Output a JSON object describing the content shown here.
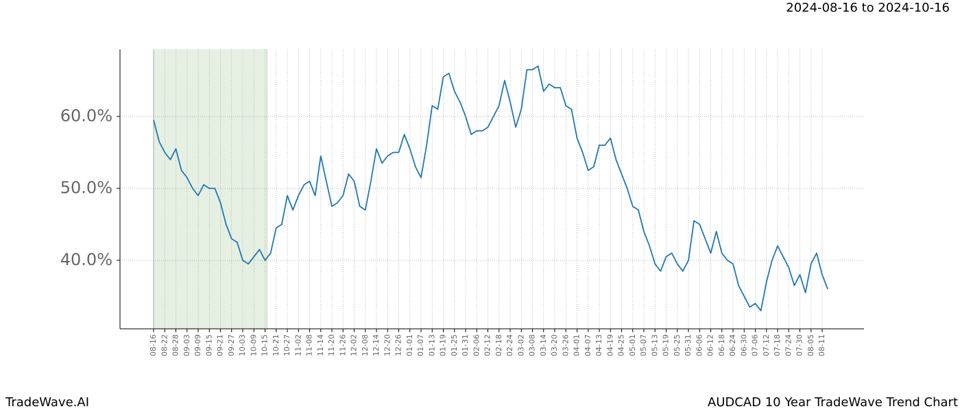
{
  "chart_data": {
    "type": "line",
    "title": "2024-08-16 to 2024-10-16",
    "footer_left": "TradeWave.AI",
    "footer_right": "AUDCAD 10 Year TradeWave Trend Chart",
    "categories": [
      "08-16",
      null,
      "08-22",
      null,
      "08-28",
      null,
      "09-03",
      null,
      "09-09",
      null,
      "09-15",
      null,
      "09-21",
      null,
      "09-27",
      null,
      "10-03",
      null,
      "10-09",
      null,
      "10-15",
      null,
      "10-21",
      null,
      "10-27",
      null,
      "11-02",
      null,
      "11-08",
      null,
      "11-14",
      null,
      "11-20",
      null,
      "11-26",
      null,
      "12-02",
      null,
      "12-08",
      null,
      "12-14",
      null,
      "12-20",
      null,
      "12-26",
      null,
      "01-01",
      null,
      "01-07",
      null,
      "01-13",
      null,
      "01-19",
      null,
      "01-25",
      null,
      "01-31",
      null,
      "02-06",
      null,
      "02-12",
      null,
      "02-18",
      null,
      "02-24",
      null,
      "03-02",
      null,
      "03-08",
      null,
      "03-14",
      null,
      "03-20",
      null,
      "03-26",
      null,
      "04-01",
      null,
      "04-07",
      null,
      "04-13",
      null,
      "04-19",
      null,
      "04-25",
      null,
      "05-01",
      null,
      "05-07",
      null,
      "05-13",
      null,
      "05-19",
      null,
      "05-25",
      null,
      "05-31",
      null,
      "06-06",
      null,
      "06-12",
      null,
      "06-18",
      null,
      "06-24",
      null,
      "06-30",
      null,
      "07-06",
      null,
      "07-12",
      null,
      "07-18",
      null,
      "07-24",
      null,
      "07-30",
      null,
      "08-05",
      null,
      "08-11",
      null
    ],
    "values": [
      59.5,
      56.5,
      55,
      54,
      55.5,
      52.5,
      51.5,
      50,
      49,
      50.5,
      50,
      50,
      48,
      45,
      43,
      42.5,
      40,
      39.5,
      40.5,
      41.5,
      40,
      41,
      44.5,
      45,
      49,
      47,
      49,
      50.5,
      51,
      49,
      54.5,
      51,
      47.5,
      48,
      49,
      52,
      51,
      47.5,
      47,
      51,
      55.5,
      53.5,
      54.5,
      55,
      55,
      57.5,
      55.5,
      53,
      51.5,
      56,
      61.5,
      61,
      65.5,
      66,
      63.5,
      62,
      60,
      57.5,
      58,
      58,
      58.5,
      60,
      61.5,
      65,
      62,
      58.5,
      61,
      66.5,
      66.5,
      67,
      63.5,
      64.5,
      64,
      64,
      61.5,
      61,
      57,
      55,
      52.5,
      53,
      56,
      56,
      57,
      54,
      52,
      50,
      47.5,
      47,
      44,
      42,
      39.5,
      38.5,
      40.5,
      41,
      39.5,
      38.5,
      40,
      45.5,
      45,
      43,
      41,
      44,
      41,
      40,
      39.5,
      36.5,
      35,
      33.5,
      34,
      33,
      37,
      40,
      42,
      40.5,
      39,
      36.5,
      38,
      35.5,
      39.5,
      41,
      38,
      36
    ],
    "color": "#1f77b4",
    "highlight": {
      "from": "08-16",
      "to": "10-15",
      "color": "#e5f0e3"
    },
    "ylim": [
      30.48,
      69.33
    ],
    "yticks": [
      {
        "value": 40,
        "label": "40.0%"
      },
      {
        "value": 50,
        "label": "50.0%"
      },
      {
        "value": 60,
        "label": "60.0%"
      }
    ],
    "grid": true
  }
}
